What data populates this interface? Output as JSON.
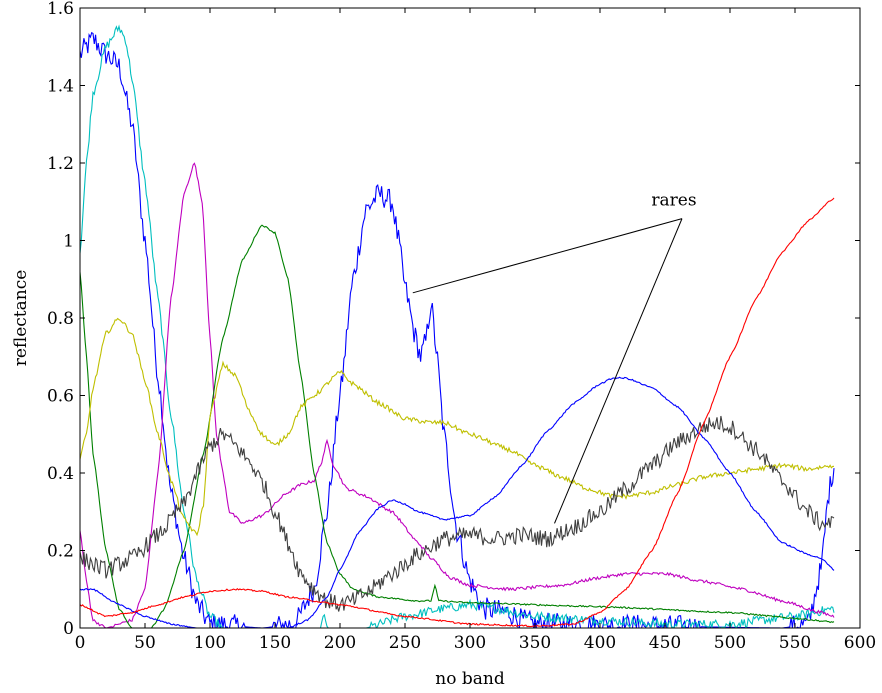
{
  "chart_data": {
    "type": "line",
    "xlabel": "no band",
    "ylabel": "reflectance",
    "xlim": [
      0,
      600
    ],
    "ylim": [
      0,
      1.6
    ],
    "x_ticks": [
      0,
      50,
      100,
      150,
      200,
      250,
      300,
      350,
      400,
      450,
      500,
      550,
      600
    ],
    "y_ticks": [
      0,
      0.2,
      0.4,
      0.6,
      0.8,
      1,
      1.2,
      1.4,
      1.6
    ],
    "grid": false,
    "series": [
      {
        "color": "#0000ff",
        "noise": 0.03,
        "points": [
          [
            0,
            1.48
          ],
          [
            5,
            1.5
          ],
          [
            10,
            1.52
          ],
          [
            20,
            1.48
          ],
          [
            30,
            1.45
          ],
          [
            40,
            1.3
          ],
          [
            50,
            1.0
          ],
          [
            60,
            0.65
          ],
          [
            70,
            0.35
          ],
          [
            80,
            0.18
          ],
          [
            90,
            0.06
          ],
          [
            100,
            0.01
          ],
          [
            140,
            0.0
          ],
          [
            165,
            0.01
          ],
          [
            180,
            0.1
          ],
          [
            190,
            0.3
          ],
          [
            200,
            0.6
          ],
          [
            210,
            0.9
          ],
          [
            220,
            1.08
          ],
          [
            230,
            1.12
          ],
          [
            240,
            1.1
          ],
          [
            245,
            1.0
          ],
          [
            250,
            0.88
          ],
          [
            258,
            0.75
          ],
          [
            262,
            0.7
          ],
          [
            266,
            0.74
          ],
          [
            270,
            0.84
          ],
          [
            274,
            0.72
          ],
          [
            280,
            0.5
          ],
          [
            290,
            0.25
          ],
          [
            300,
            0.12
          ],
          [
            310,
            0.05
          ],
          [
            330,
            0.04
          ],
          [
            340,
            0.02
          ],
          [
            350,
            0.01
          ],
          [
            540,
            0.0
          ],
          [
            560,
            0.01
          ],
          [
            570,
            0.15
          ],
          [
            576,
            0.35
          ],
          [
            580,
            0.42
          ]
        ]
      },
      {
        "color": "#00bfbf",
        "noise": 0.012,
        "points": [
          [
            0,
            0.97
          ],
          [
            5,
            1.2
          ],
          [
            10,
            1.38
          ],
          [
            20,
            1.5
          ],
          [
            30,
            1.55
          ],
          [
            35,
            1.52
          ],
          [
            40,
            1.42
          ],
          [
            50,
            1.15
          ],
          [
            60,
            0.85
          ],
          [
            70,
            0.55
          ],
          [
            80,
            0.3
          ],
          [
            90,
            0.12
          ],
          [
            100,
            0.03
          ],
          [
            110,
            0.0
          ],
          [
            185,
            0.0
          ],
          [
            188,
            0.03
          ],
          [
            191,
            0.0
          ],
          [
            220,
            0.0
          ],
          [
            250,
            0.03
          ],
          [
            280,
            0.05
          ],
          [
            300,
            0.06
          ],
          [
            320,
            0.05
          ],
          [
            350,
            0.03
          ],
          [
            400,
            0.02
          ],
          [
            450,
            0.01
          ],
          [
            500,
            0.01
          ],
          [
            550,
            0.03
          ],
          [
            580,
            0.05
          ]
        ]
      },
      {
        "color": "#bf00bf",
        "noise": 0.004,
        "points": [
          [
            0,
            0.25
          ],
          [
            5,
            0.12
          ],
          [
            10,
            0.02
          ],
          [
            20,
            0.0
          ],
          [
            40,
            0.02
          ],
          [
            50,
            0.1
          ],
          [
            60,
            0.4
          ],
          [
            70,
            0.85
          ],
          [
            80,
            1.12
          ],
          [
            88,
            1.2
          ],
          [
            94,
            1.1
          ],
          [
            100,
            0.75
          ],
          [
            105,
            0.5
          ],
          [
            110,
            0.4
          ],
          [
            115,
            0.3
          ],
          [
            125,
            0.27
          ],
          [
            140,
            0.29
          ],
          [
            160,
            0.35
          ],
          [
            170,
            0.37
          ],
          [
            180,
            0.38
          ],
          [
            185,
            0.42
          ],
          [
            190,
            0.48
          ],
          [
            195,
            0.42
          ],
          [
            205,
            0.36
          ],
          [
            220,
            0.34
          ],
          [
            240,
            0.3
          ],
          [
            260,
            0.22
          ],
          [
            270,
            0.18
          ],
          [
            285,
            0.13
          ],
          [
            300,
            0.11
          ],
          [
            330,
            0.1
          ],
          [
            370,
            0.11
          ],
          [
            400,
            0.13
          ],
          [
            420,
            0.14
          ],
          [
            450,
            0.14
          ],
          [
            480,
            0.12
          ],
          [
            510,
            0.1
          ],
          [
            540,
            0.07
          ],
          [
            570,
            0.04
          ],
          [
            580,
            0.03
          ]
        ]
      },
      {
        "color": "#008000",
        "noise": 0.002,
        "points": [
          [
            0,
            0.92
          ],
          [
            5,
            0.7
          ],
          [
            10,
            0.45
          ],
          [
            20,
            0.2
          ],
          [
            30,
            0.05
          ],
          [
            40,
            0.0
          ],
          [
            55,
            0.0
          ],
          [
            65,
            0.05
          ],
          [
            80,
            0.2
          ],
          [
            95,
            0.45
          ],
          [
            110,
            0.75
          ],
          [
            125,
            0.95
          ],
          [
            140,
            1.04
          ],
          [
            150,
            1.02
          ],
          [
            160,
            0.9
          ],
          [
            170,
            0.65
          ],
          [
            180,
            0.4
          ],
          [
            190,
            0.22
          ],
          [
            200,
            0.14
          ],
          [
            210,
            0.1
          ],
          [
            230,
            0.08
          ],
          [
            260,
            0.07
          ],
          [
            270,
            0.07
          ],
          [
            273,
            0.11
          ],
          [
            276,
            0.07
          ],
          [
            300,
            0.065
          ],
          [
            400,
            0.055
          ],
          [
            500,
            0.04
          ],
          [
            550,
            0.025
          ],
          [
            580,
            0.015
          ]
        ]
      },
      {
        "color": "#bfbf00",
        "noise": 0.006,
        "points": [
          [
            0,
            0.44
          ],
          [
            5,
            0.5
          ],
          [
            10,
            0.62
          ],
          [
            20,
            0.76
          ],
          [
            30,
            0.8
          ],
          [
            40,
            0.76
          ],
          [
            50,
            0.64
          ],
          [
            60,
            0.5
          ],
          [
            70,
            0.38
          ],
          [
            80,
            0.28
          ],
          [
            90,
            0.24
          ],
          [
            95,
            0.32
          ],
          [
            100,
            0.55
          ],
          [
            110,
            0.68
          ],
          [
            120,
            0.65
          ],
          [
            130,
            0.56
          ],
          [
            140,
            0.5
          ],
          [
            150,
            0.47
          ],
          [
            160,
            0.5
          ],
          [
            170,
            0.57
          ],
          [
            180,
            0.6
          ],
          [
            200,
            0.66
          ],
          [
            210,
            0.63
          ],
          [
            230,
            0.58
          ],
          [
            250,
            0.54
          ],
          [
            270,
            0.53
          ],
          [
            280,
            0.53
          ],
          [
            300,
            0.5
          ],
          [
            330,
            0.46
          ],
          [
            350,
            0.42
          ],
          [
            370,
            0.39
          ],
          [
            390,
            0.36
          ],
          [
            410,
            0.34
          ],
          [
            420,
            0.34
          ],
          [
            440,
            0.35
          ],
          [
            460,
            0.37
          ],
          [
            480,
            0.39
          ],
          [
            500,
            0.4
          ],
          [
            520,
            0.41
          ],
          [
            540,
            0.42
          ],
          [
            560,
            0.41
          ],
          [
            580,
            0.42
          ]
        ]
      },
      {
        "color": "#404040",
        "noise": 0.022,
        "points": [
          [
            0,
            0.18
          ],
          [
            20,
            0.15
          ],
          [
            40,
            0.18
          ],
          [
            60,
            0.24
          ],
          [
            80,
            0.32
          ],
          [
            90,
            0.4
          ],
          [
            100,
            0.47
          ],
          [
            110,
            0.5
          ],
          [
            120,
            0.47
          ],
          [
            130,
            0.43
          ],
          [
            140,
            0.38
          ],
          [
            150,
            0.3
          ],
          [
            160,
            0.22
          ],
          [
            170,
            0.14
          ],
          [
            180,
            0.1
          ],
          [
            190,
            0.07
          ],
          [
            200,
            0.06
          ],
          [
            210,
            0.07
          ],
          [
            220,
            0.09
          ],
          [
            240,
            0.14
          ],
          [
            260,
            0.19
          ],
          [
            280,
            0.23
          ],
          [
            300,
            0.24
          ],
          [
            320,
            0.23
          ],
          [
            340,
            0.24
          ],
          [
            360,
            0.23
          ],
          [
            380,
            0.26
          ],
          [
            400,
            0.3
          ],
          [
            420,
            0.36
          ],
          [
            440,
            0.42
          ],
          [
            460,
            0.48
          ],
          [
            480,
            0.52
          ],
          [
            490,
            0.53
          ],
          [
            500,
            0.52
          ],
          [
            520,
            0.46
          ],
          [
            540,
            0.38
          ],
          [
            560,
            0.3
          ],
          [
            570,
            0.27
          ],
          [
            580,
            0.27
          ]
        ]
      },
      {
        "color": "#0000ff",
        "noise": 0.002,
        "points": [
          [
            0,
            0.1
          ],
          [
            10,
            0.1
          ],
          [
            30,
            0.06
          ],
          [
            50,
            0.03
          ],
          [
            70,
            0.01
          ],
          [
            90,
            0.0
          ],
          [
            160,
            0.0
          ],
          [
            175,
            0.02
          ],
          [
            190,
            0.08
          ],
          [
            200,
            0.15
          ],
          [
            215,
            0.25
          ],
          [
            230,
            0.31
          ],
          [
            240,
            0.33
          ],
          [
            250,
            0.32
          ],
          [
            260,
            0.3
          ],
          [
            280,
            0.28
          ],
          [
            300,
            0.29
          ],
          [
            320,
            0.34
          ],
          [
            340,
            0.42
          ],
          [
            360,
            0.51
          ],
          [
            380,
            0.58
          ],
          [
            400,
            0.63
          ],
          [
            410,
            0.645
          ],
          [
            420,
            0.645
          ],
          [
            440,
            0.62
          ],
          [
            460,
            0.57
          ],
          [
            480,
            0.49
          ],
          [
            500,
            0.4
          ],
          [
            520,
            0.3
          ],
          [
            540,
            0.22
          ],
          [
            560,
            0.19
          ],
          [
            570,
            0.18
          ],
          [
            580,
            0.15
          ]
        ]
      },
      {
        "color": "#ff0000",
        "noise": 0.002,
        "points": [
          [
            0,
            0.06
          ],
          [
            20,
            0.03
          ],
          [
            40,
            0.04
          ],
          [
            60,
            0.06
          ],
          [
            80,
            0.08
          ],
          [
            100,
            0.095
          ],
          [
            120,
            0.1
          ],
          [
            140,
            0.095
          ],
          [
            160,
            0.08
          ],
          [
            200,
            0.06
          ],
          [
            250,
            0.03
          ],
          [
            300,
            0.01
          ],
          [
            350,
            0.005
          ],
          [
            380,
            0.01
          ],
          [
            400,
            0.04
          ],
          [
            420,
            0.1
          ],
          [
            440,
            0.2
          ],
          [
            460,
            0.35
          ],
          [
            480,
            0.53
          ],
          [
            500,
            0.7
          ],
          [
            520,
            0.85
          ],
          [
            540,
            0.97
          ],
          [
            560,
            1.05
          ],
          [
            580,
            1.11
          ]
        ]
      }
    ],
    "annotations": [
      {
        "text": "rares",
        "x": 480,
        "y": 1.09,
        "arrows": [
          [
            256,
            0.865
          ],
          [
            365,
            0.27
          ]
        ]
      }
    ]
  }
}
